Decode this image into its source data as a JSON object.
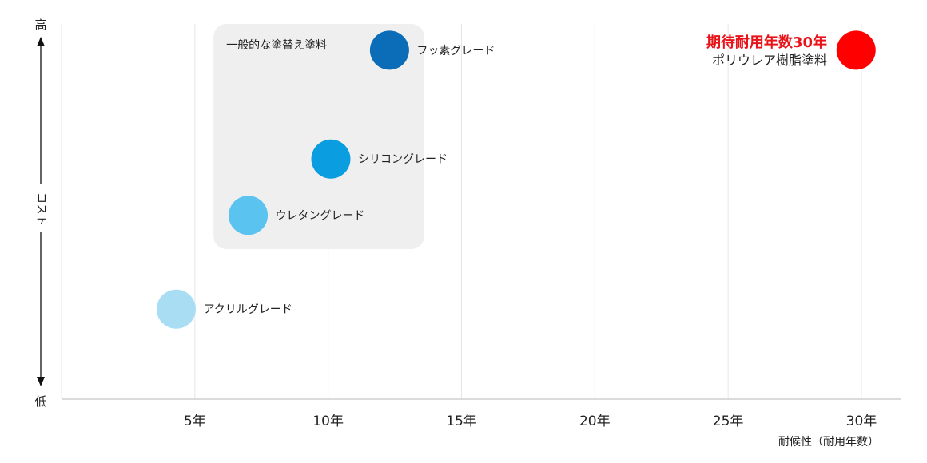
{
  "chart_data": {
    "type": "scatter",
    "xlabel": "耐候性（耐用年数）",
    "ylabel": "コスト",
    "y_high_label": "高",
    "y_low_label": "低",
    "xlim": [
      0,
      31.5
    ],
    "ylim": [
      0,
      1
    ],
    "x_ticks": [
      {
        "value": 5,
        "label": "5年"
      },
      {
        "value": 10,
        "label": "10年"
      },
      {
        "value": 15,
        "label": "15年"
      },
      {
        "value": 20,
        "label": "20年"
      },
      {
        "value": 25,
        "label": "25年"
      },
      {
        "value": 30,
        "label": "30年"
      }
    ],
    "grid": true,
    "group_box": {
      "label": "一般的な塗替え塗料",
      "x_range": [
        5.7,
        13.6
      ],
      "y_range": [
        0.4,
        1.0
      ]
    },
    "points": [
      {
        "label": "アクリルグレード",
        "x": 4.3,
        "y": 0.24,
        "color": "#a8ddf4"
      },
      {
        "label": "ウレタングレード",
        "x": 7.0,
        "y": 0.49,
        "color": "#5bc3ef"
      },
      {
        "label": "シリコングレード",
        "x": 10.1,
        "y": 0.64,
        "color": "#0a9ee0"
      },
      {
        "label": "フッ素グレード",
        "x": 12.3,
        "y": 0.93,
        "color": "#0b6cb8"
      }
    ],
    "highlight": {
      "x": 29.8,
      "y": 0.93,
      "color": "#ff0000",
      "title": "期待耐用年数30年",
      "subtitle": "ポリウレア樹脂塗料",
      "title_color": "#e8141a"
    }
  }
}
